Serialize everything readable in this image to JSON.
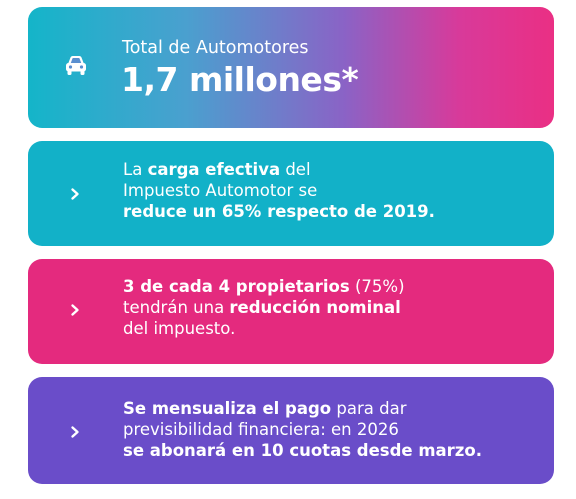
{
  "total": {
    "label": "Total de Automotores",
    "value": "1,7 millones*"
  },
  "cards": [
    {
      "lines": [
        [
          {
            "t": "La ",
            "b": false
          },
          {
            "t": "carga efectiva",
            "b": true
          },
          {
            "t": " del",
            "b": false
          }
        ],
        [
          {
            "t": "Impuesto Automotor se",
            "b": false
          }
        ],
        [
          {
            "t": "reduce un 65% respecto de 2019.",
            "b": true
          }
        ]
      ]
    },
    {
      "lines": [
        [
          {
            "t": "3 de cada 4 propietarios",
            "b": true
          },
          {
            "t": " (75%)",
            "b": false
          }
        ],
        [
          {
            "t": "tendrán una ",
            "b": false
          },
          {
            "t": "reducción nominal",
            "b": true
          }
        ],
        [
          {
            "t": "del impuesto.",
            "b": false
          }
        ]
      ]
    },
    {
      "lines": [
        [
          {
            "t": "Se mensualiza el pago",
            "b": true
          },
          {
            "t": " para dar",
            "b": false
          }
        ],
        [
          {
            "t": "previsibilidad financiera: en 2026",
            "b": false
          }
        ],
        [
          {
            "t": "se abonará en 10 cuotas desde marzo.",
            "b": true
          }
        ]
      ]
    }
  ],
  "icons": {
    "car": "car-icon",
    "chevron": "chevron-right-icon"
  },
  "colors": {
    "card_total_start": "#14b5c9",
    "card_total_end": "#ea2f84",
    "card_carga": "#12b1c8",
    "card_propietarios": "#e42a7e",
    "card_pago": "#6a4dc9",
    "text": "#ffffff"
  }
}
